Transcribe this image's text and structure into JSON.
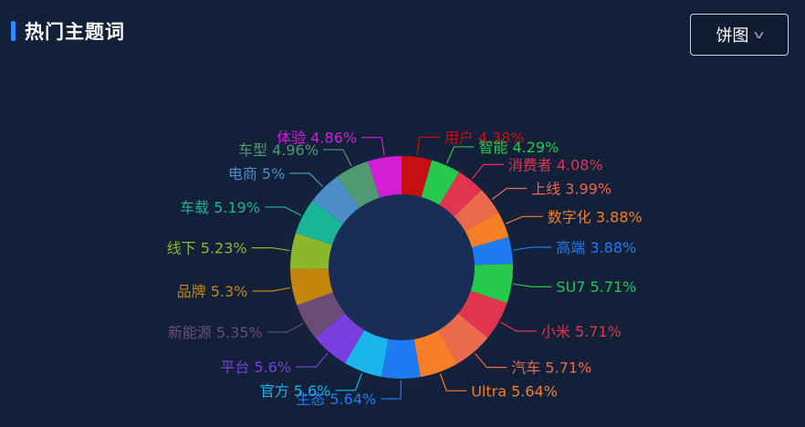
{
  "header": {
    "title": "热门主题词"
  },
  "dropdown": {
    "selected": "饼图",
    "icon": "chevron-down-icon"
  },
  "chart_data": {
    "type": "pie",
    "variant": "donut",
    "categories": [
      "用户",
      "智能",
      "消费者",
      "上线",
      "数字化",
      "高端",
      "SU7",
      "小米",
      "汽车",
      "Ultra",
      "生态",
      "官方",
      "平台",
      "新能源",
      "品牌",
      "线下",
      "车载",
      "电商",
      "车型",
      "体验"
    ],
    "values": [
      4.38,
      4.29,
      4.08,
      3.99,
      3.88,
      3.88,
      5.71,
      5.71,
      5.71,
      5.64,
      5.64,
      5.6,
      5.6,
      5.35,
      5.3,
      5.23,
      5.19,
      5,
      4.96,
      4.86
    ],
    "labels": [
      "用户 4.38%",
      "智能 4.29%",
      "消费者 4.08%",
      "上线 3.99%",
      "数字化 3.88%",
      "高端 3.88%",
      "SU7 5.71%",
      "小米 5.71%",
      "汽车 5.71%",
      "Ultra 5.64%",
      "生态 5.64%",
      "官方 5.6%",
      "平台 5.6%",
      "新能源 5.35%",
      "品牌 5.3%",
      "线下 5.23%",
      "车载 5.19%",
      "电商 5%",
      "车型 4.96%",
      "体验 4.86%"
    ],
    "colors": [
      "#c80e12",
      "#27c84e",
      "#e2334f",
      "#ea6a4d",
      "#f57e27",
      "#1e7bf2",
      "#27c84e",
      "#e2334f",
      "#ea6a4d",
      "#f57e27",
      "#1e7bf2",
      "#1ab5ea",
      "#7a3ee0",
      "#6b4c78",
      "#c4860c",
      "#8ab82a",
      "#1ab596",
      "#4b8ec8",
      "#4f9a72",
      "#d21ed4"
    ],
    "unit": "%",
    "start_angle_deg": 90,
    "direction": "clockwise",
    "legend": "none",
    "label_position": "outside-with-leader-lines"
  }
}
